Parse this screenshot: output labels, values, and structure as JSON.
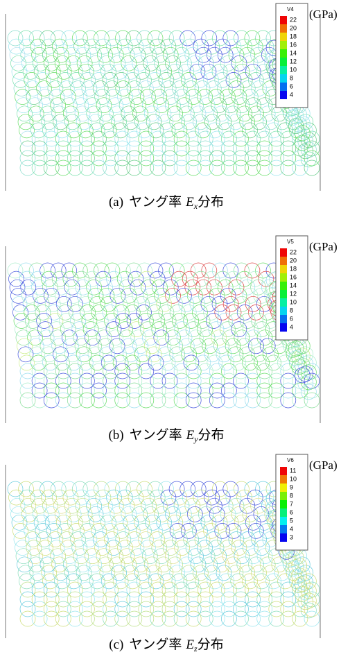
{
  "panels": [
    {
      "legend": {
        "title": "V4",
        "ticks": [
          22,
          20,
          18,
          16,
          14,
          12,
          10,
          8,
          6,
          4
        ],
        "unit": "(GPa)"
      },
      "caption": {
        "label": "(a)",
        "text": "ヤング率",
        "symbol": "E",
        "subscript": "x",
        "suffix": "分布"
      }
    },
    {
      "legend": {
        "title": "V5",
        "ticks": [
          22,
          20,
          18,
          16,
          14,
          12,
          10,
          8,
          6,
          4
        ],
        "unit": "(GPa)"
      },
      "caption": {
        "label": "(b)",
        "text": "ヤング率",
        "symbol": "E",
        "subscript": "y",
        "suffix": "分布"
      }
    },
    {
      "legend": {
        "title": "V6",
        "ticks": [
          11,
          10,
          9,
          8,
          7,
          6,
          5,
          4,
          3
        ],
        "unit": "(GPa)"
      },
      "caption": {
        "label": "(c)",
        "text": "ヤング率",
        "symbol": "E",
        "subscript": "z",
        "suffix": "分布"
      }
    }
  ]
}
